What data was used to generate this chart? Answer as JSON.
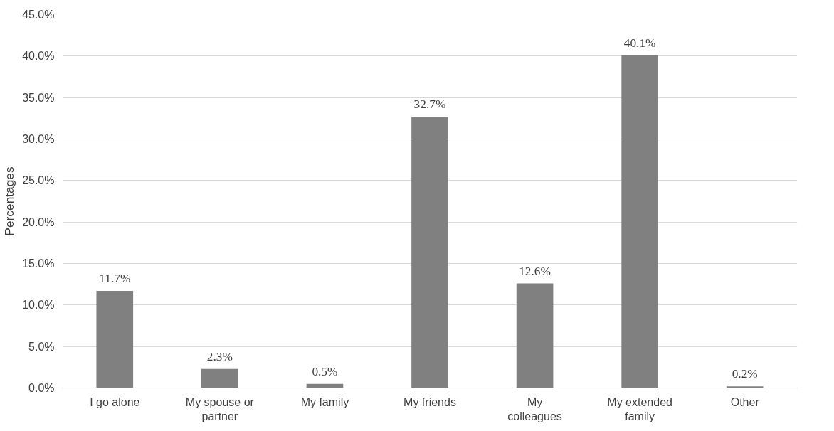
{
  "chart_data": {
    "type": "bar",
    "ylabel": "Percentages",
    "categories": [
      "I go alone",
      "My spouse or partner",
      "My family",
      "My friends",
      "My colleagues",
      "My extended family",
      "Other"
    ],
    "values": [
      11.7,
      2.3,
      0.5,
      32.7,
      12.6,
      40.1,
      0.2
    ],
    "value_labels": [
      "11.7%",
      "2.3%",
      "0.5%",
      "32.7%",
      "12.6%",
      "40.1%",
      "0.2%"
    ],
    "color": "#808080",
    "ylim": [
      0,
      45
    ],
    "yticks": [
      {
        "value": 0,
        "label": "0.0%"
      },
      {
        "value": 5,
        "label": "5.0%"
      },
      {
        "value": 10,
        "label": "10.0%"
      },
      {
        "value": 15,
        "label": "15.0%"
      },
      {
        "value": 20,
        "label": "20.0%"
      },
      {
        "value": 25,
        "label": "25.0%"
      },
      {
        "value": 30,
        "label": "30.0%"
      },
      {
        "value": 35,
        "label": "35.0%"
      },
      {
        "value": 40,
        "label": "40.0%"
      },
      {
        "value": 45,
        "label": "45.0%"
      }
    ],
    "grid": "y"
  }
}
